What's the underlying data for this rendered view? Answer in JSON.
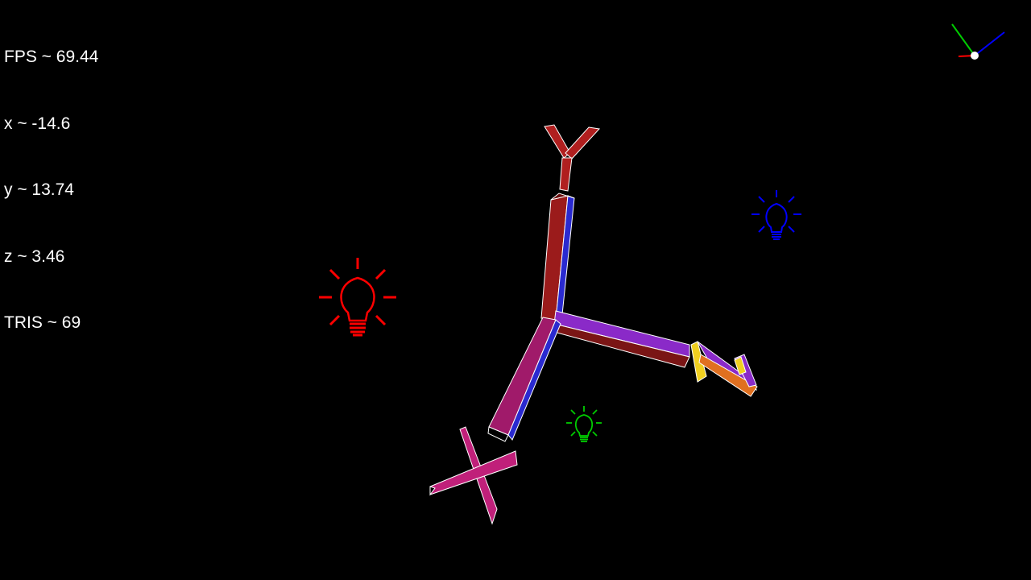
{
  "hud": {
    "fps": "FPS ~ 69.44",
    "x": "x ~ -14.6",
    "y": "y ~ 13.74",
    "z": "z ~ 3.46",
    "tris": "TRIS ~ 69"
  },
  "scene": {
    "background": "#000000",
    "edge_color": "#ffffff",
    "axis_colors": {
      "x": "#7a2a9a",
      "y": "#9b1b1b",
      "z": "#a01a6a"
    },
    "label_colors": {
      "x_label": "#e07020",
      "y_label": "#b01f1f",
      "z_label": "#c0207a"
    },
    "lights": [
      {
        "name": "red-light",
        "color": "#ff0000"
      },
      {
        "name": "blue-light",
        "color": "#0000ff"
      },
      {
        "name": "green-light",
        "color": "#00cc00"
      }
    ],
    "gizmo": {
      "x_color": "#ff0000",
      "y_color": "#00cc00",
      "z_color": "#0000ff"
    }
  }
}
